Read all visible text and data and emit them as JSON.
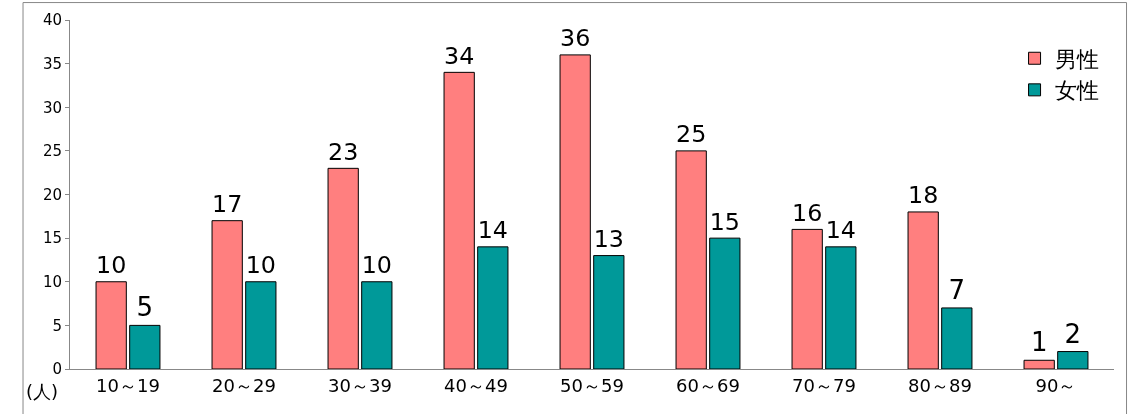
{
  "chart_data": {
    "type": "bar",
    "ylabel": "(人)",
    "categories": [
      "10～19",
      "20～29",
      "30～39",
      "40～49",
      "50～59",
      "60～69",
      "70～79",
      "80～89",
      "90～"
    ],
    "series": [
      {
        "name": "男性",
        "color": "#ff7f7f",
        "values": [
          10,
          17,
          23,
          34,
          36,
          25,
          16,
          18,
          1
        ]
      },
      {
        "name": "女性",
        "color": "#009999",
        "values": [
          5,
          10,
          10,
          14,
          13,
          15,
          14,
          7,
          2
        ]
      }
    ],
    "ylim": [
      0,
      40
    ],
    "yticks": [
      0,
      5,
      10,
      15,
      20,
      25,
      30,
      35,
      40
    ],
    "data_labels": true,
    "legend": "top right"
  }
}
